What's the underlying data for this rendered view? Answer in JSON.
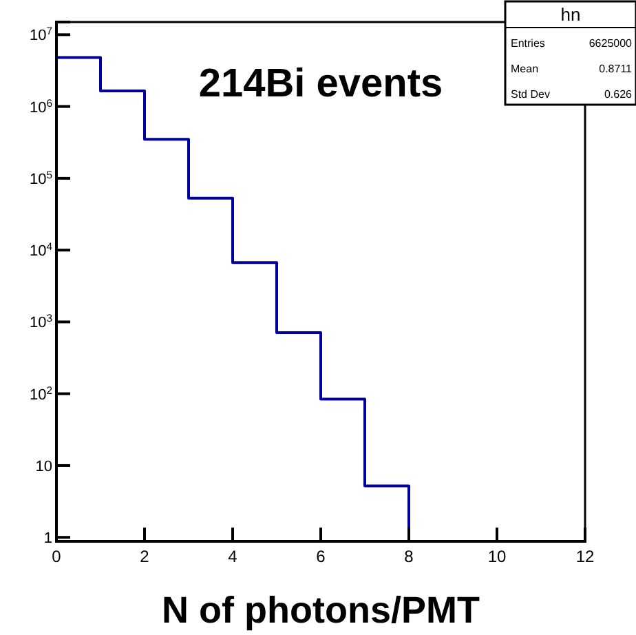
{
  "chart_data": {
    "type": "histogram",
    "title": "214Bi events",
    "xlabel": "N of photons/PMT",
    "bins": [
      0,
      1,
      2,
      3,
      4,
      5,
      6,
      7,
      8
    ],
    "values": [
      4800000,
      1650000,
      350000,
      53000,
      6700,
      710,
      84,
      5.2
    ],
    "color": "#0000a0",
    "xlim": [
      0,
      12
    ],
    "xticks": [
      0,
      2,
      4,
      6,
      8,
      10,
      12
    ],
    "ylim": [
      0.88,
      15000000
    ],
    "log": true,
    "yticks": [
      1,
      10,
      {
        "value": 100,
        "label": "10$^{2}$"
      },
      {
        "value": 1000,
        "label": "10$^{3}$"
      },
      {
        "value": 10000,
        "label": "10$^{4}$"
      },
      {
        "value": 100000,
        "label": "10$^{5}$"
      },
      {
        "value": 1000000,
        "label": "10$^{6}$"
      },
      {
        "value": 10000000,
        "label": "10$^{7}$"
      }
    ],
    "grid": false,
    "annotations": [
      "hn",
      "Entries",
      "6625000",
      "Mean",
      "0.8711",
      "Std Dev",
      "0.626"
    ]
  }
}
